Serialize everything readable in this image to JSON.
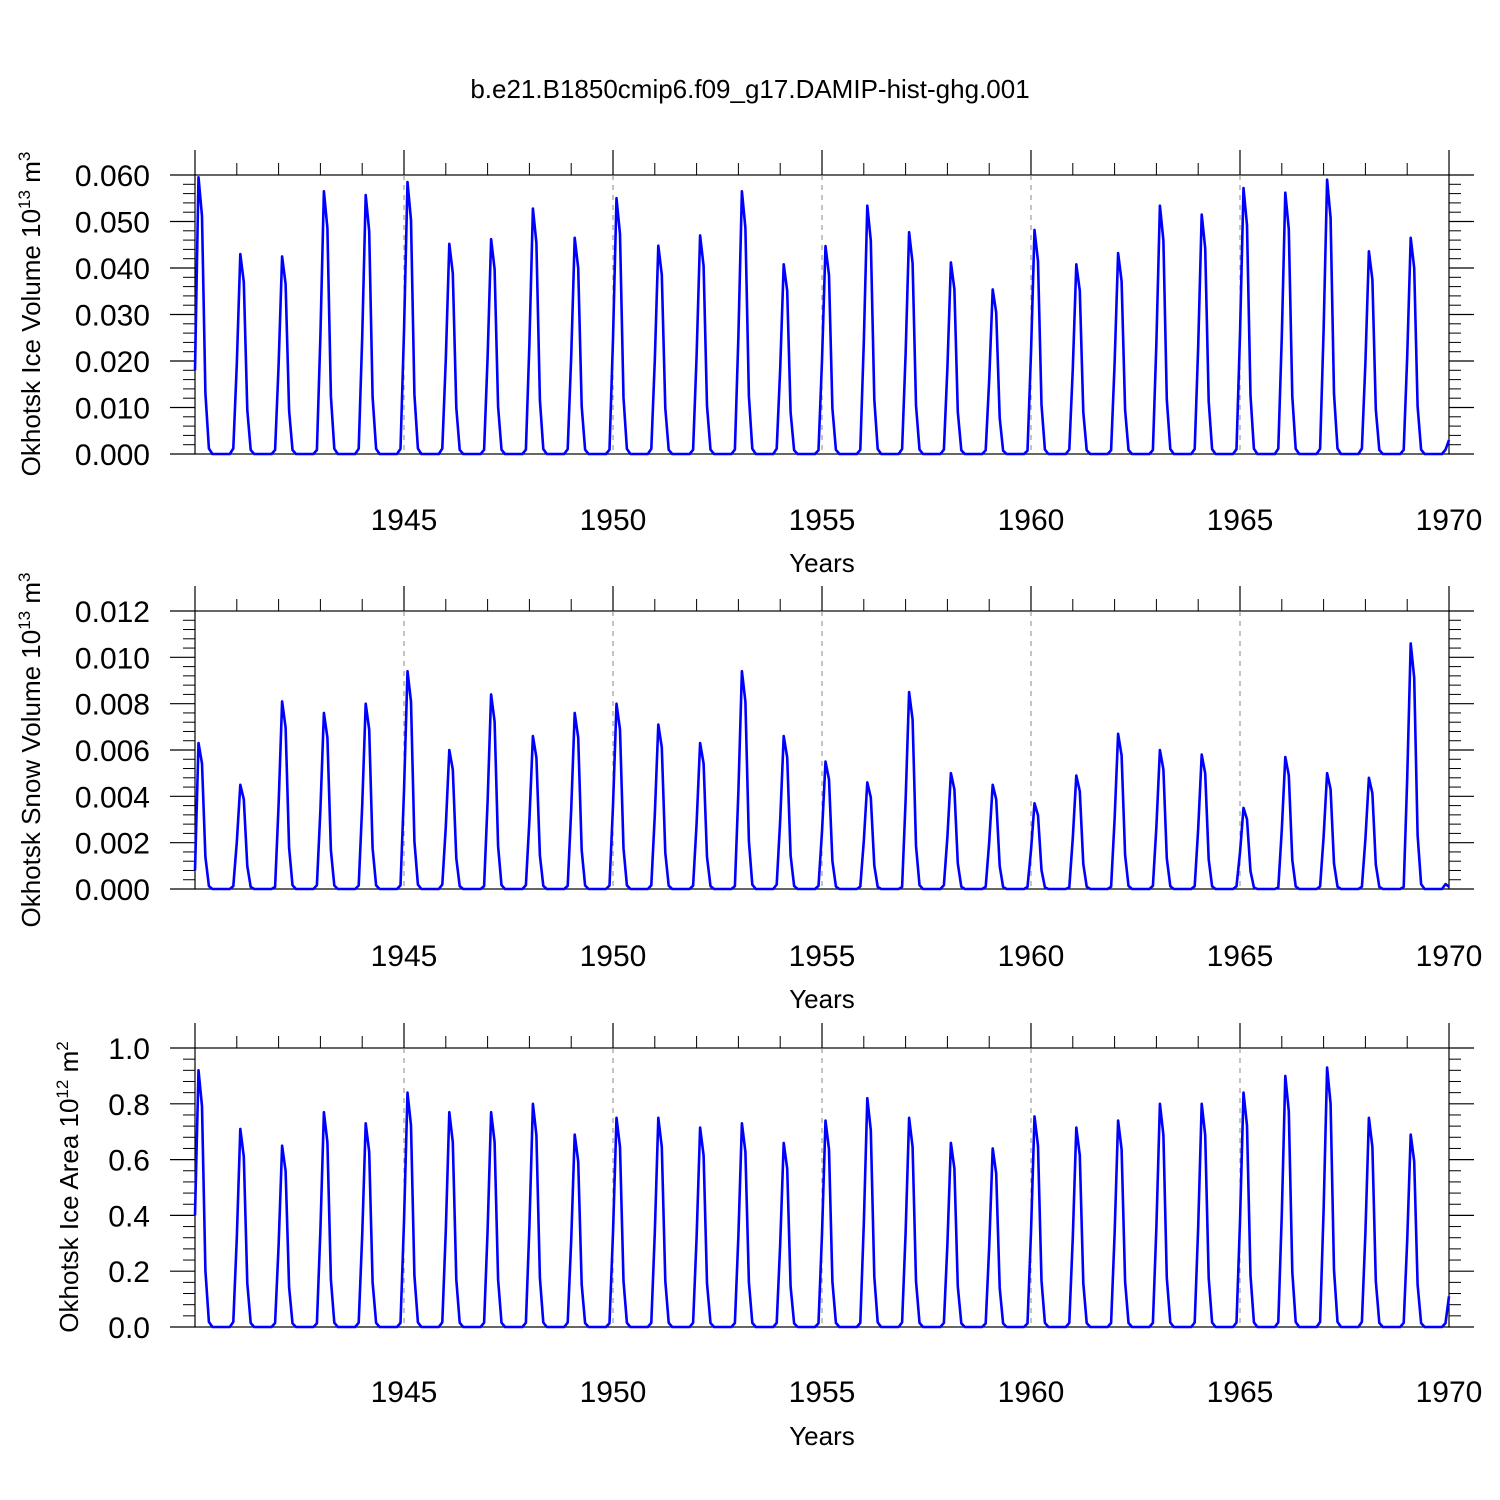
{
  "title": "b.e21.B1850cmip6.f09_g17.DAMIP-hist-ghg.001",
  "chart_data": [
    {
      "type": "line",
      "ylabel": "Okhotsk Ice Volume 10",
      "ylabel_exp": "13",
      "ylabel_unit": "m",
      "ylabel_unit_exp": "3",
      "xlabel": "Years",
      "xlim": [
        1940.0,
        1970.0
      ],
      "ylim": [
        0.0,
        0.06
      ],
      "x_ticks": [
        "1945",
        "1950",
        "1955",
        "1960",
        "1965",
        "1970"
      ],
      "y_ticks": [
        "0.000",
        "0.010",
        "0.020",
        "0.030",
        "0.040",
        "0.050",
        "0.060"
      ],
      "line_color": "#0000ff",
      "start_value": 0.018,
      "end_value": 0.003,
      "annual_peaks": [
        0.0595,
        0.043,
        0.0425,
        0.0565,
        0.0557,
        0.0585,
        0.0452,
        0.0462,
        0.0528,
        0.0465,
        0.055,
        0.0448,
        0.047,
        0.0565,
        0.0408,
        0.0447,
        0.0534,
        0.0477,
        0.0412,
        0.0354,
        0.0482,
        0.0408,
        0.0432,
        0.0534,
        0.0515,
        0.0572,
        0.0562,
        0.059,
        0.0436,
        0.0465
      ],
      "series": [
        {
          "name": "Okhotsk Ice Volume",
          "values": []
        }
      ]
    },
    {
      "type": "line",
      "ylabel": "Okhotsk Snow Volume 10",
      "ylabel_exp": "13",
      "ylabel_unit": "m",
      "ylabel_unit_exp": "3",
      "xlabel": "Years",
      "xlim": [
        1940.0,
        1970.0
      ],
      "ylim": [
        0.0,
        0.012
      ],
      "x_ticks": [
        "1945",
        "1950",
        "1955",
        "1960",
        "1965",
        "1970"
      ],
      "y_ticks": [
        "0.000",
        "0.002",
        "0.004",
        "0.006",
        "0.008",
        "0.010",
        "0.012"
      ],
      "line_color": "#0000ff",
      "start_value": 0.0008,
      "end_value": 0.0001,
      "annual_peaks": [
        0.0063,
        0.0045,
        0.0081,
        0.0076,
        0.008,
        0.0094,
        0.006,
        0.0084,
        0.0066,
        0.0076,
        0.008,
        0.0071,
        0.0063,
        0.0094,
        0.0066,
        0.0055,
        0.0046,
        0.0085,
        0.005,
        0.0045,
        0.0037,
        0.0049,
        0.0067,
        0.006,
        0.0058,
        0.0035,
        0.0057,
        0.005,
        0.0048,
        0.0106
      ],
      "series": [
        {
          "name": "Okhotsk Snow Volume",
          "values": []
        }
      ]
    },
    {
      "type": "line",
      "ylabel": "Okhotsk Ice Area 10",
      "ylabel_exp": "12",
      "ylabel_unit": "m",
      "ylabel_unit_exp": "2",
      "xlabel": "Years",
      "xlim": [
        1940.0,
        1970.0
      ],
      "ylim": [
        0.0,
        1.0
      ],
      "x_ticks": [
        "1945",
        "1950",
        "1955",
        "1960",
        "1965",
        "1970"
      ],
      "y_ticks": [
        "0.0",
        "0.2",
        "0.4",
        "0.6",
        "0.8",
        "1.0"
      ],
      "line_color": "#0000ff",
      "start_value": 0.4,
      "end_value": 0.11,
      "annual_peaks": [
        0.92,
        0.71,
        0.65,
        0.77,
        0.73,
        0.84,
        0.77,
        0.77,
        0.8,
        0.69,
        0.75,
        0.75,
        0.715,
        0.73,
        0.66,
        0.74,
        0.82,
        0.75,
        0.66,
        0.64,
        0.755,
        0.715,
        0.74,
        0.8,
        0.8,
        0.84,
        0.9,
        0.93,
        0.75,
        0.69
      ],
      "series": [
        {
          "name": "Okhotsk Ice Area",
          "values": []
        }
      ]
    }
  ]
}
